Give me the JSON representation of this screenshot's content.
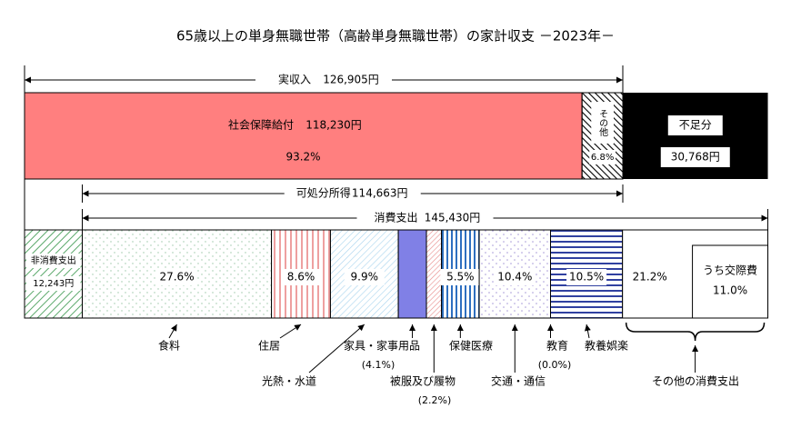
{
  "title": "65歳以上の単身無職世帯（高齢単身無職世帯）の家計収支 －2023年－",
  "income": {
    "label": "実収入",
    "amount": {
      "value": 126905,
      "label": "126,905円"
    }
  },
  "social_security": {
    "label": "社会保障給付",
    "amount": {
      "value": 118230,
      "label": "118,230円"
    },
    "share": {
      "value": 93.2,
      "label": "93.2%"
    }
  },
  "other_income": {
    "label": "その他",
    "share": {
      "value": 6.8,
      "label": "6.8%"
    }
  },
  "deficit": {
    "label": "不足分",
    "amount": {
      "value": 30768,
      "label": "30,768円"
    }
  },
  "disposable": {
    "label": "可処分所得",
    "amount": {
      "value": 114663,
      "label": "114,663円"
    }
  },
  "consumption": {
    "label": "消費支出",
    "amount": {
      "value": 145430,
      "label": "145,430円"
    }
  },
  "non_consumption": {
    "label": "非消費支出",
    "amount": {
      "value": 12243,
      "label": "12,243円"
    }
  },
  "items": [
    {
      "label": "食料",
      "share": {
        "value": 27.6,
        "label": "27.6%"
      }
    },
    {
      "label": "住居",
      "share": {
        "value": 8.6,
        "label": "8.6%"
      }
    },
    {
      "label": "光熱・水道",
      "share": {
        "value": 9.9,
        "label": "9.9%"
      }
    },
    {
      "label": "家具・家事用品",
      "share": {
        "value": 4.1,
        "label": "(4.1%)"
      }
    },
    {
      "label": "被服及び履物",
      "share": {
        "value": 2.2,
        "label": "(2.2%)"
      }
    },
    {
      "label": "保健医療",
      "share": {
        "value": 5.5,
        "label": "5.5%"
      }
    },
    {
      "label": "交通・通信",
      "share": {
        "value": 10.4,
        "label": "10.4%"
      }
    },
    {
      "label": "教育",
      "share": {
        "value": 0.0,
        "label": "(0.0%)"
      }
    },
    {
      "label": "教養娯楽",
      "share": {
        "value": 10.5,
        "label": "10.5%"
      }
    },
    {
      "label": "その他の消費支出",
      "share": {
        "value": 21.2,
        "label": "21.2%"
      }
    }
  ],
  "social_expense": {
    "label": "うち交際費",
    "share": {
      "value": 11.0,
      "label": "11.0%"
    }
  }
}
